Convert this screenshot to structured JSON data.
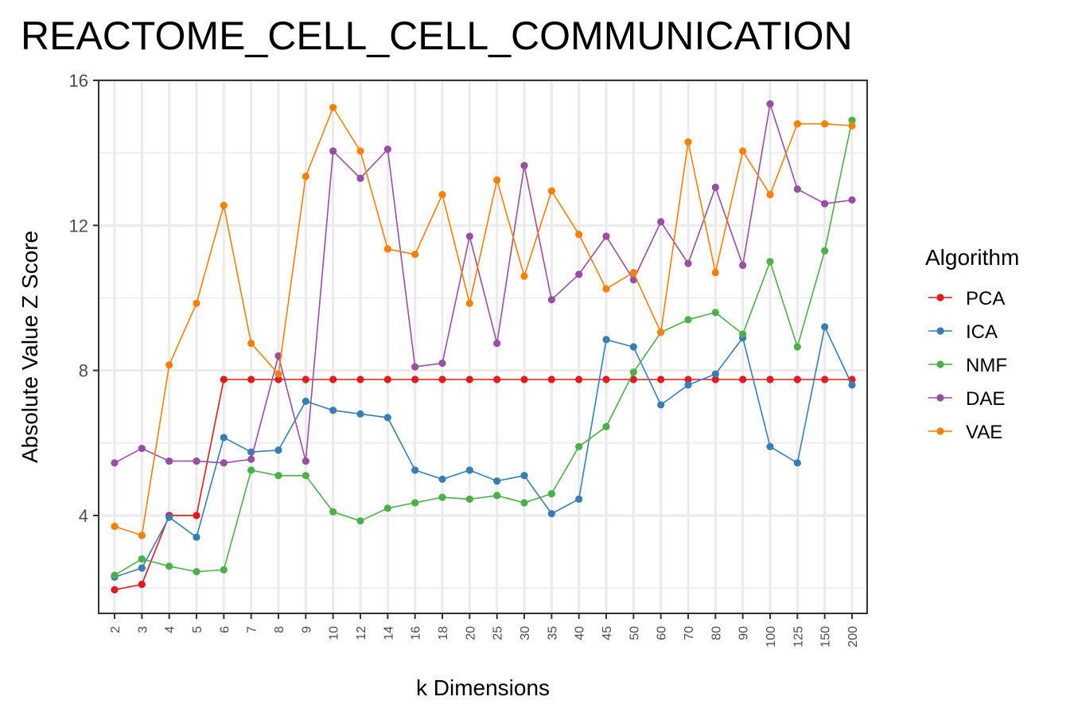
{
  "chart_data": {
    "type": "line",
    "title": "REACTOME_CELL_CELL_COMMUNICATION",
    "xlabel": "k Dimensions",
    "ylabel": "Absolute Value Z Score",
    "categories": [
      "2",
      "3",
      "4",
      "5",
      "6",
      "7",
      "8",
      "9",
      "10",
      "12",
      "14",
      "16",
      "18",
      "20",
      "25",
      "30",
      "35",
      "40",
      "45",
      "50",
      "60",
      "70",
      "80",
      "90",
      "100",
      "125",
      "150",
      "200"
    ],
    "yticks": [
      4,
      8,
      12,
      16
    ],
    "ylim": [
      1.3,
      16
    ],
    "grid": true,
    "legend": {
      "title": "Algorithm",
      "placement": "right"
    },
    "series": [
      {
        "name": "PCA",
        "color": "#e41a1c",
        "values": [
          1.95,
          2.1,
          4.0,
          4.0,
          7.75,
          7.75,
          7.75,
          7.75,
          7.75,
          7.75,
          7.75,
          7.75,
          7.75,
          7.75,
          7.75,
          7.75,
          7.75,
          7.75,
          7.75,
          7.75,
          7.75,
          7.75,
          7.75,
          7.75,
          7.75,
          7.75,
          7.75,
          7.75
        ]
      },
      {
        "name": "ICA",
        "color": "#377eb8",
        "values": [
          2.3,
          2.55,
          3.95,
          3.4,
          6.15,
          5.75,
          5.8,
          7.15,
          6.9,
          6.8,
          6.7,
          5.25,
          5.0,
          5.25,
          4.95,
          5.1,
          4.05,
          4.45,
          8.85,
          8.65,
          7.05,
          7.6,
          7.9,
          8.9,
          5.9,
          5.45,
          9.2,
          7.6
        ]
      },
      {
        "name": "NMF",
        "color": "#4daf4a",
        "values": [
          2.35,
          2.8,
          2.6,
          2.45,
          2.5,
          5.25,
          5.1,
          5.1,
          4.1,
          3.85,
          4.2,
          4.35,
          4.5,
          4.45,
          4.55,
          4.35,
          4.6,
          5.9,
          6.45,
          7.95,
          9.05,
          9.4,
          9.6,
          9.0,
          11.0,
          8.65,
          11.3,
          14.9
        ]
      },
      {
        "name": "DAE",
        "color": "#984ea3",
        "values": [
          5.45,
          5.85,
          5.5,
          5.5,
          5.45,
          5.55,
          8.4,
          5.5,
          14.05,
          13.3,
          14.1,
          8.1,
          8.2,
          11.7,
          8.75,
          13.65,
          9.95,
          10.65,
          11.7,
          10.5,
          12.1,
          10.95,
          13.05,
          10.9,
          15.35,
          13.0,
          12.6,
          12.7
        ]
      },
      {
        "name": "VAE",
        "color": "#ff7f00",
        "values": [
          3.7,
          3.45,
          8.15,
          9.85,
          12.55,
          8.75,
          7.9,
          13.35,
          15.25,
          14.05,
          11.35,
          11.2,
          12.85,
          9.85,
          13.25,
          10.6,
          12.95,
          11.75,
          10.25,
          10.7,
          9.05,
          14.3,
          10.7,
          14.05,
          12.85,
          14.8,
          14.8,
          14.75
        ]
      }
    ]
  }
}
